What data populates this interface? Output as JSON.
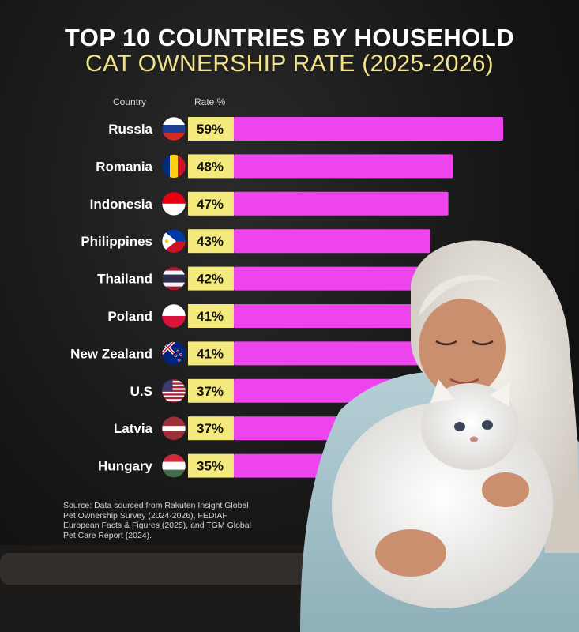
{
  "title_line1": "TOP 10 COUNTRIES BY HOUSEHOLD",
  "title_line2": "CAT OWNERSHIP RATE (2025-2026)",
  "header": {
    "country": "Country",
    "rate": "Rate %"
  },
  "source": "Source: Data sourced from Rakuten Insight Global Pet Ownership Survey (2024-2026), FEDIAF European Facts & Figures (2025), and TGM Global Pet Care Report (2024).",
  "colors": {
    "bar": "#ee44ee",
    "label_bg": "#f3e97c",
    "title_accent": "#f2e38a"
  },
  "chart_data": {
    "type": "bar",
    "orientation": "horizontal",
    "categories": [
      "Russia",
      "Romania",
      "Indonesia",
      "Philippines",
      "Thailand",
      "Poland",
      "New Zealand",
      "U.S",
      "Latvia",
      "Hungary"
    ],
    "values": [
      59,
      48,
      47,
      43,
      42,
      41,
      41,
      37,
      37,
      35
    ],
    "value_labels": [
      "59%",
      "48%",
      "47%",
      "43%",
      "42%",
      "41%",
      "41%",
      "37%",
      "37%",
      "35%"
    ],
    "flags": [
      "russia-flag-icon",
      "romania-flag-icon",
      "indonesia-flag-icon",
      "philippines-flag-icon",
      "thailand-flag-icon",
      "poland-flag-icon",
      "new-zealand-flag-icon",
      "us-flag-icon",
      "latvia-flag-icon",
      "hungary-flag-icon"
    ]
  }
}
